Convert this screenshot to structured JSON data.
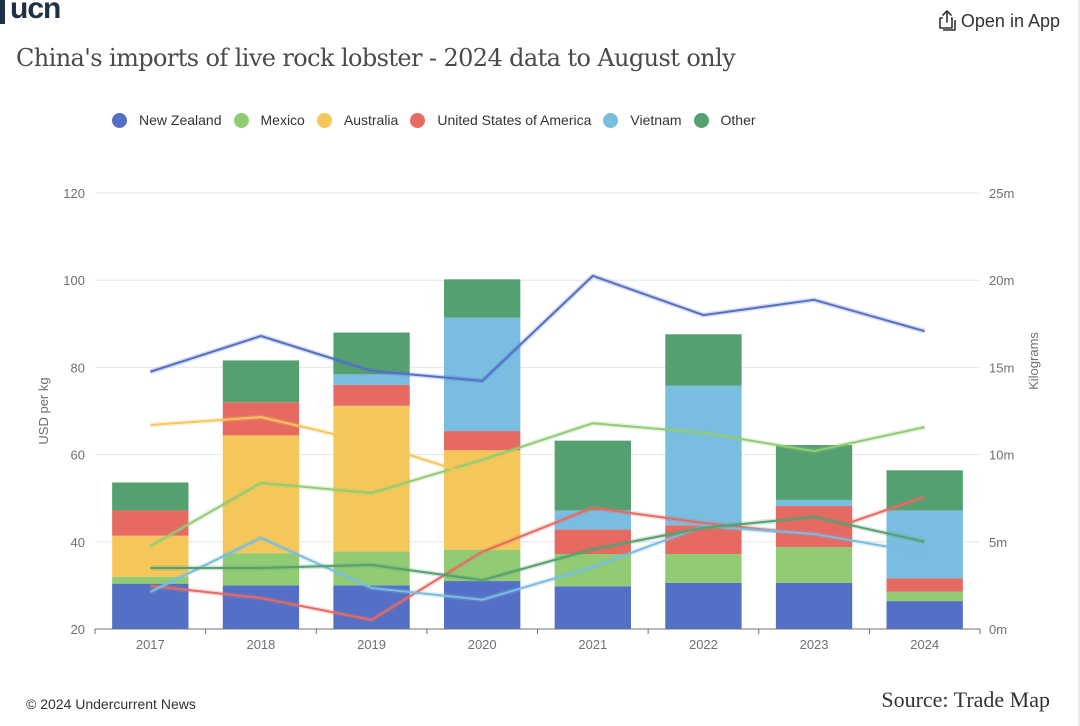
{
  "header": {
    "logo_text": "ucn",
    "open_app_label": "Open in App",
    "open_app_icon": "share-icon"
  },
  "footer": {
    "copyright": "© 2024 Undercurrent News",
    "source": "Source: Trade Map"
  },
  "colors": {
    "New Zealand": "#5470c6",
    "Mexico": "#91cc75",
    "Australia": "#f5c75a",
    "United States of America": "#e66a62",
    "Vietnam": "#79bde0",
    "Other": "#55a070"
  },
  "chart_data": {
    "type": "bar+line",
    "title": "China's imports of live rock lobster - 2024 data to August only",
    "categories": [
      "2017",
      "2018",
      "2019",
      "2020",
      "2021",
      "2022",
      "2023",
      "2024"
    ],
    "legend": [
      "New Zealand",
      "Mexico",
      "Australia",
      "United States of America",
      "Vietnam",
      "Other"
    ],
    "legend_position": "top-left",
    "y_left": {
      "label": "USD per kg",
      "min": 20,
      "max": 120,
      "ticks": [
        "20",
        "40",
        "60",
        "80",
        "100",
        "120"
      ]
    },
    "y_right": {
      "label": "Kilograms",
      "min": 0,
      "max": 25,
      "ticks": [
        "0m",
        "5m",
        "10m",
        "15m",
        "20m",
        "25m"
      ]
    },
    "grid": true,
    "bar_series_unit": "million kg (stacked, right axis)",
    "bar_series": [
      {
        "name": "New Zealand",
        "values": [
          2.6,
          2.5,
          2.5,
          2.75,
          2.45,
          2.65,
          2.65,
          1.6
        ]
      },
      {
        "name": "Mexico",
        "values": [
          0.4,
          1.85,
          1.95,
          1.8,
          1.85,
          1.65,
          2.05,
          0.55
        ]
      },
      {
        "name": "Australia",
        "values": [
          2.35,
          6.75,
          8.35,
          5.7,
          0,
          0,
          0,
          0
        ]
      },
      {
        "name": "United States of America",
        "values": [
          1.45,
          1.9,
          1.2,
          1.1,
          1.4,
          1.65,
          2.35,
          0.75
        ]
      },
      {
        "name": "Vietnam",
        "values": [
          0,
          0,
          0.6,
          6.5,
          1.1,
          8.0,
          0.35,
          3.9
        ]
      },
      {
        "name": "Other",
        "values": [
          1.6,
          2.4,
          2.4,
          2.2,
          4.0,
          2.95,
          3.15,
          2.3
        ]
      }
    ],
    "line_series_unit": "USD per kg (left axis)",
    "line_series": [
      {
        "name": "New Zealand",
        "values": [
          79,
          87.2,
          79.2,
          76.9,
          101,
          92,
          95.5,
          88.3
        ]
      },
      {
        "name": "Mexico",
        "values": [
          39,
          53.5,
          51.2,
          58.8,
          67.2,
          65,
          60.8,
          66.3
        ]
      },
      {
        "name": "Australia",
        "values": [
          66.8,
          68.6,
          62.7,
          54.6,
          null,
          null,
          null,
          null
        ]
      },
      {
        "name": "United States of America",
        "values": [
          29.9,
          27.1,
          22.1,
          37.7,
          47.8,
          44.3,
          41.6,
          50.3
        ]
      },
      {
        "name": "Vietnam",
        "values": [
          28.5,
          40.9,
          29.4,
          26.7,
          34.2,
          43.6,
          41.8,
          37.4
        ]
      },
      {
        "name": "Other",
        "values": [
          34,
          34,
          34.7,
          31.2,
          38.3,
          43.2,
          45.7,
          40
        ]
      }
    ]
  }
}
